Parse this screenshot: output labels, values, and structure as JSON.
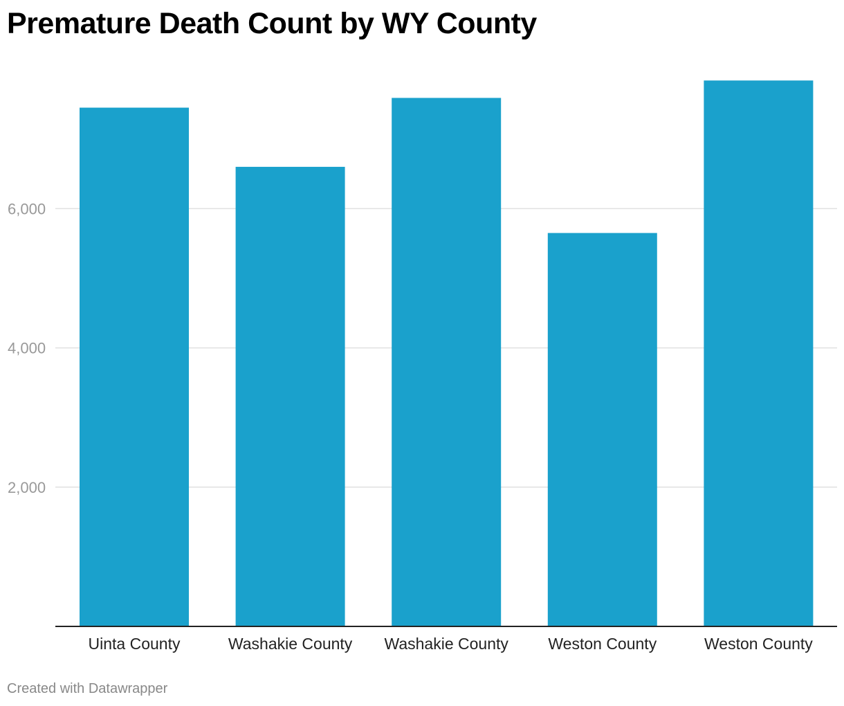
{
  "chart_data": {
    "type": "bar",
    "title": "Premature Death Count by WY County",
    "xlabel": "",
    "ylabel": "",
    "categories": [
      "Uinta County",
      "Washakie County",
      "Washakie County",
      "Weston County",
      "Weston County"
    ],
    "values": [
      7450,
      6600,
      7590,
      5650,
      7840
    ],
    "ylim": [
      0,
      8000
    ],
    "yticks": [
      2000,
      4000,
      6000
    ],
    "ytick_labels": [
      "2,000",
      "4,000",
      "6,000"
    ],
    "grid": true,
    "legend": "none"
  },
  "colors": {
    "bar": "#1aa1cc",
    "grid": "#e0e0e0",
    "axis": "#222222",
    "tick_text": "#999999",
    "category_text": "#222222"
  },
  "footer": {
    "credit": "Created with Datawrapper"
  }
}
